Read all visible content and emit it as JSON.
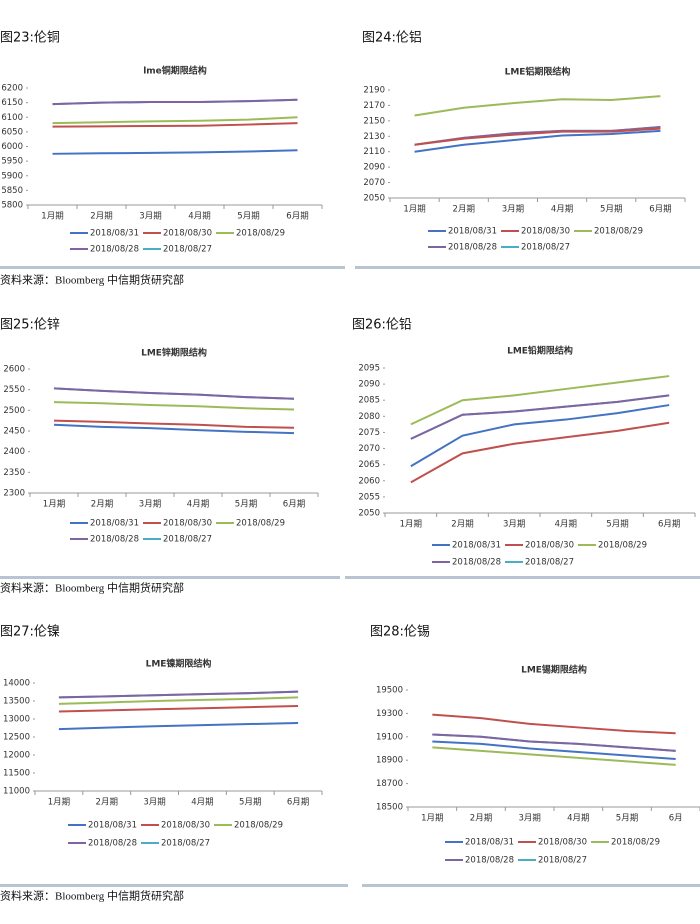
{
  "sources": [
    "资料来源：Bloomberg 中信期货研究部",
    "资料来源：Bloomberg 中信期货研究部",
    "资料来源：Bloomberg 中信期货研究部"
  ],
  "chart_data": [
    {
      "type": "line",
      "caption": "图23:伦铜",
      "title": "lme铜期限结构",
      "categories": [
        "1月期",
        "2月期",
        "3月期",
        "4月期",
        "5月期",
        "6月期"
      ],
      "ylim": [
        5800,
        6200
      ],
      "yticks": [
        5800,
        5850,
        5900,
        5950,
        6000,
        6050,
        6100,
        6150,
        6200
      ],
      "series": [
        {
          "name": "2018/08/31",
          "color": "#4472c4",
          "values": [
            5975,
            5977,
            5978,
            5980,
            5983,
            5987
          ]
        },
        {
          "name": "2018/08/30",
          "color": "#c0504d",
          "values": [
            6068,
            6069,
            6070,
            6071,
            6075,
            6080
          ]
        },
        {
          "name": "2018/08/29",
          "color": "#9bbb59",
          "values": [
            6080,
            6083,
            6086,
            6088,
            6092,
            6100
          ]
        },
        {
          "name": "2018/08/28",
          "color": "#8064a2",
          "values": [
            6145,
            6150,
            6152,
            6152,
            6155,
            6160
          ]
        },
        {
          "name": "2018/08/27",
          "color": "#4bacc6",
          "values": [
            6145,
            6150,
            6152,
            6152,
            6155,
            6160
          ]
        }
      ]
    },
    {
      "type": "line",
      "caption": "图24:伦铝",
      "title": "LME铝期限结构",
      "categories": [
        "1月期",
        "2月期",
        "3月期",
        "4月期",
        "5月期",
        "6月期"
      ],
      "ylim": [
        2050,
        2190
      ],
      "yticks": [
        2050,
        2070,
        2090,
        2110,
        2130,
        2150,
        2170,
        2190
      ],
      "series": [
        {
          "name": "2018/08/31",
          "color": "#4472c4",
          "values": [
            2110,
            2119,
            2125,
            2131,
            2133,
            2137
          ]
        },
        {
          "name": "2018/08/30",
          "color": "#c0504d",
          "values": [
            2119,
            2127,
            2132,
            2136,
            2136,
            2140
          ]
        },
        {
          "name": "2018/08/29",
          "color": "#9bbb59",
          "values": [
            2157,
            2167,
            2173,
            2178,
            2177,
            2182
          ]
        },
        {
          "name": "2018/08/28",
          "color": "#8064a2",
          "values": [
            2119,
            2128,
            2134,
            2137,
            2137,
            2142
          ]
        },
        {
          "name": "2018/08/27",
          "color": "#4bacc6",
          "values": [
            2119,
            2128,
            2134,
            2137,
            2137,
            2142
          ]
        }
      ]
    },
    {
      "type": "line",
      "caption": "图25:伦锌",
      "title": "LME锌期限结构",
      "categories": [
        "1月期",
        "2月期",
        "3月期",
        "4月期",
        "5月期",
        "6月期"
      ],
      "ylim": [
        2300,
        2600
      ],
      "yticks": [
        2300,
        2350,
        2400,
        2450,
        2500,
        2550,
        2600
      ],
      "series": [
        {
          "name": "2018/08/31",
          "color": "#4472c4",
          "values": [
            2465,
            2460,
            2457,
            2452,
            2448,
            2445
          ]
        },
        {
          "name": "2018/08/30",
          "color": "#c0504d",
          "values": [
            2475,
            2472,
            2468,
            2465,
            2460,
            2458
          ]
        },
        {
          "name": "2018/08/29",
          "color": "#9bbb59",
          "values": [
            2520,
            2517,
            2513,
            2510,
            2505,
            2502
          ]
        },
        {
          "name": "2018/08/28",
          "color": "#8064a2",
          "values": [
            2553,
            2547,
            2542,
            2538,
            2532,
            2528
          ]
        },
        {
          "name": "2018/08/27",
          "color": "#4bacc6",
          "values": [
            2553,
            2547,
            2542,
            2538,
            2532,
            2528
          ]
        }
      ]
    },
    {
      "type": "line",
      "caption": "图26:伦铅",
      "title": "LME铅期限结构",
      "categories": [
        "1月期",
        "2月期",
        "3月期",
        "4月期",
        "5月期",
        "6月期"
      ],
      "ylim": [
        2050,
        2095
      ],
      "yticks": [
        2050,
        2055,
        2060,
        2065,
        2070,
        2075,
        2080,
        2085,
        2090,
        2095
      ],
      "series": [
        {
          "name": "2018/08/31",
          "color": "#4472c4",
          "values": [
            2064.5,
            2074,
            2077.5,
            2079,
            2081,
            2083.5
          ]
        },
        {
          "name": "2018/08/30",
          "color": "#c0504d",
          "values": [
            2059.5,
            2068.5,
            2071.5,
            2073.5,
            2075.5,
            2078
          ]
        },
        {
          "name": "2018/08/29",
          "color": "#9bbb59",
          "values": [
            2077.5,
            2085,
            2086.5,
            2088.5,
            2090.5,
            2092.5
          ]
        },
        {
          "name": "2018/08/28",
          "color": "#8064a2",
          "values": [
            2073,
            2080.5,
            2081.5,
            2083,
            2084.5,
            2086.5
          ]
        },
        {
          "name": "2018/08/27",
          "color": "#4bacc6",
          "values": [
            2073,
            2080.5,
            2081.5,
            2083,
            2084.5,
            2086.5
          ]
        }
      ]
    },
    {
      "type": "line",
      "caption": "图27:伦镍",
      "title": "LME镍期限结构",
      "categories": [
        "1月期",
        "2月期",
        "3月期",
        "4月期",
        "5月期",
        "6月期"
      ],
      "ylim": [
        11000,
        14000
      ],
      "yticks": [
        11000,
        11500,
        12000,
        12500,
        13000,
        13500,
        14000
      ],
      "series": [
        {
          "name": "2018/08/31",
          "color": "#4472c4",
          "values": [
            12720,
            12760,
            12800,
            12830,
            12860,
            12890
          ]
        },
        {
          "name": "2018/08/30",
          "color": "#c0504d",
          "values": [
            13210,
            13240,
            13270,
            13300,
            13330,
            13360
          ]
        },
        {
          "name": "2018/08/29",
          "color": "#9bbb59",
          "values": [
            13420,
            13460,
            13500,
            13530,
            13560,
            13600
          ]
        },
        {
          "name": "2018/08/28",
          "color": "#8064a2",
          "values": [
            13600,
            13630,
            13660,
            13690,
            13720,
            13760
          ]
        },
        {
          "name": "2018/08/27",
          "color": "#4bacc6",
          "values": [
            13600,
            13630,
            13660,
            13690,
            13720,
            13760
          ]
        }
      ]
    },
    {
      "type": "line",
      "caption": "图28:伦锡",
      "title": "LME锡期限结构",
      "categories": [
        "1月期",
        "2月期",
        "3月期",
        "4月期",
        "5月期",
        "6月"
      ],
      "ylim": [
        18500,
        19500
      ],
      "yticks": [
        18500,
        18700,
        18900,
        19100,
        19300,
        19500
      ],
      "series": [
        {
          "name": "2018/08/31",
          "color": "#4472c4",
          "values": [
            19060,
            19040,
            19000,
            18970,
            18940,
            18910
          ]
        },
        {
          "name": "2018/08/30",
          "color": "#c0504d",
          "values": [
            19290,
            19260,
            19210,
            19180,
            19150,
            19130
          ]
        },
        {
          "name": "2018/08/29",
          "color": "#9bbb59",
          "values": [
            19010,
            18980,
            18950,
            18920,
            18890,
            18860
          ]
        },
        {
          "name": "2018/08/28",
          "color": "#8064a2",
          "values": [
            19120,
            19100,
            19060,
            19040,
            19010,
            18980
          ]
        },
        {
          "name": "2018/08/27",
          "color": "#4bacc6",
          "values": [
            19120,
            19100,
            19060,
            19040,
            19010,
            18980
          ]
        }
      ]
    }
  ]
}
